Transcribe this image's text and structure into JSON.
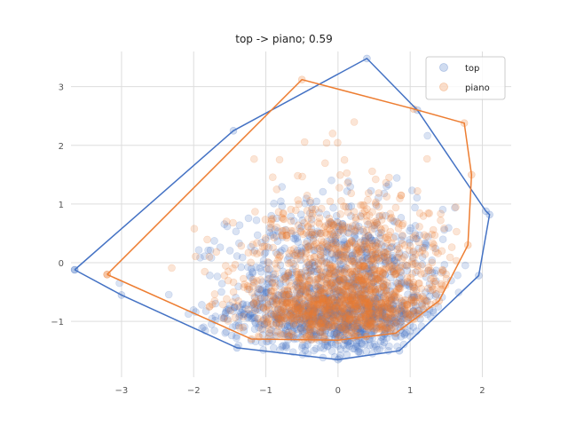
{
  "chart_data": {
    "type": "scatter",
    "title": "top -> piano; 0.59",
    "xlabel": "",
    "ylabel": "",
    "xlim": [
      -3.7,
      2.4
    ],
    "ylim": [
      -1.95,
      3.6
    ],
    "xticks": [
      -3,
      -2,
      -1,
      0,
      1,
      2
    ],
    "yticks": [
      -1,
      0,
      1,
      2,
      3
    ],
    "xtick_labels": [
      "−3",
      "−2",
      "−1",
      "0",
      "1",
      "2"
    ],
    "ytick_labels": [
      "−1",
      "0",
      "1",
      "2",
      "3"
    ],
    "grid": true,
    "legend_position": "top-right",
    "series": [
      {
        "name": "top",
        "color": "#4472c4",
        "n_points_approx": 2500,
        "center": [
          0.0,
          -0.75
        ],
        "hull": [
          [
            -3.65,
            -0.12
          ],
          [
            -1.45,
            2.25
          ],
          [
            0.4,
            3.48
          ],
          [
            1.1,
            2.6
          ],
          [
            2.05,
            0.88
          ],
          [
            2.1,
            0.82
          ],
          [
            1.95,
            -0.22
          ],
          [
            0.85,
            -1.5
          ],
          [
            0.0,
            -1.65
          ],
          [
            -1.4,
            -1.45
          ],
          [
            -3.0,
            -0.55
          ],
          [
            -3.65,
            -0.12
          ]
        ]
      },
      {
        "name": "piano",
        "color": "#ed7d31",
        "n_points_approx": 2500,
        "center": [
          0.1,
          -0.6
        ],
        "hull": [
          [
            -3.2,
            -0.2
          ],
          [
            -0.5,
            3.12
          ],
          [
            1.05,
            2.62
          ],
          [
            1.75,
            2.38
          ],
          [
            1.85,
            1.5
          ],
          [
            1.8,
            0.3
          ],
          [
            1.4,
            -0.65
          ],
          [
            0.8,
            -1.2
          ],
          [
            0.0,
            -1.32
          ],
          [
            -1.2,
            -1.3
          ],
          [
            -3.2,
            -0.2
          ]
        ]
      }
    ]
  }
}
